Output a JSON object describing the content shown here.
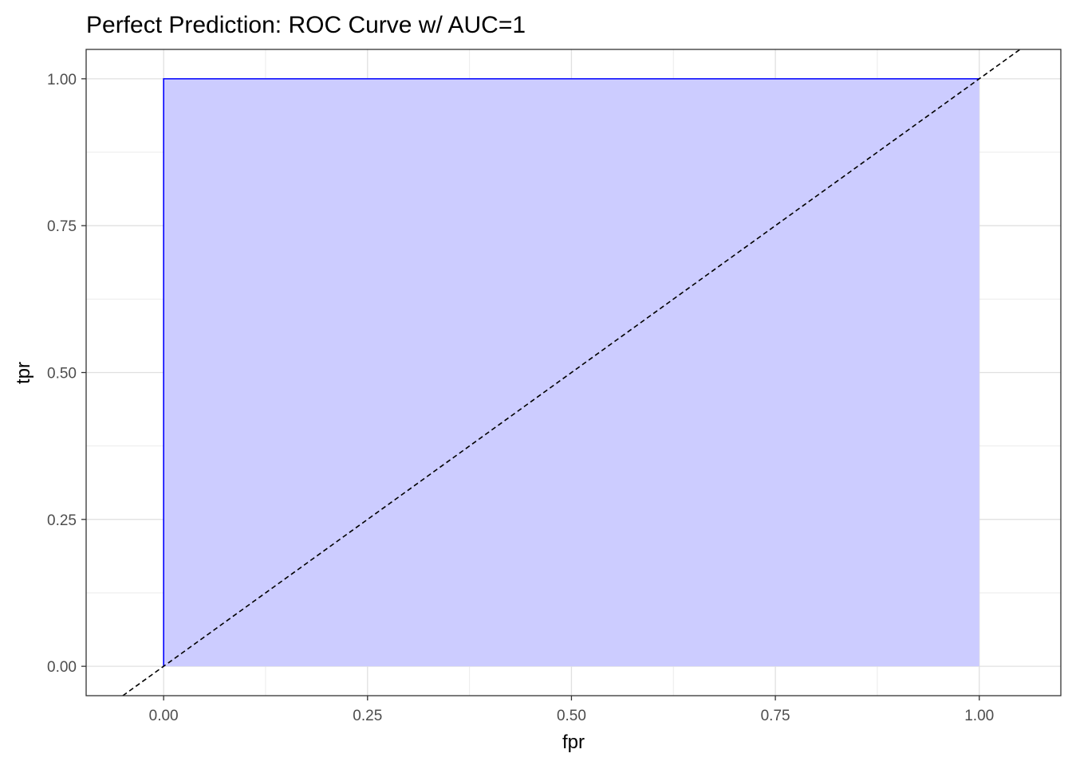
{
  "chart_data": {
    "type": "area",
    "title": "Perfect Prediction: ROC Curve w/ AUC=1",
    "xlabel": "fpr",
    "ylabel": "tpr",
    "xlim": [
      -0.095,
      1.1
    ],
    "ylim": [
      -0.05,
      1.05
    ],
    "x_ticks": [
      0.0,
      0.25,
      0.5,
      0.75,
      1.0
    ],
    "x_tick_labels": [
      "0.00",
      "0.25",
      "0.50",
      "0.75",
      "1.00"
    ],
    "y_ticks": [
      0.0,
      0.25,
      0.5,
      0.75,
      1.0
    ],
    "y_tick_labels": [
      "0.00",
      "0.25",
      "0.50",
      "0.75",
      "1.00"
    ],
    "grid": true,
    "series": [
      {
        "kind": "step-line-with-fill",
        "x": [
          0.0,
          0.0,
          1.0
        ],
        "y": [
          0.0,
          1.0,
          1.0
        ],
        "line_color": "#0000ff",
        "fill_color": "#ccccff"
      },
      {
        "kind": "reference-diagonal",
        "x": [
          -1,
          2
        ],
        "y": [
          -1,
          2
        ],
        "line_style": "dashed",
        "line_color": "#000000"
      }
    ]
  }
}
